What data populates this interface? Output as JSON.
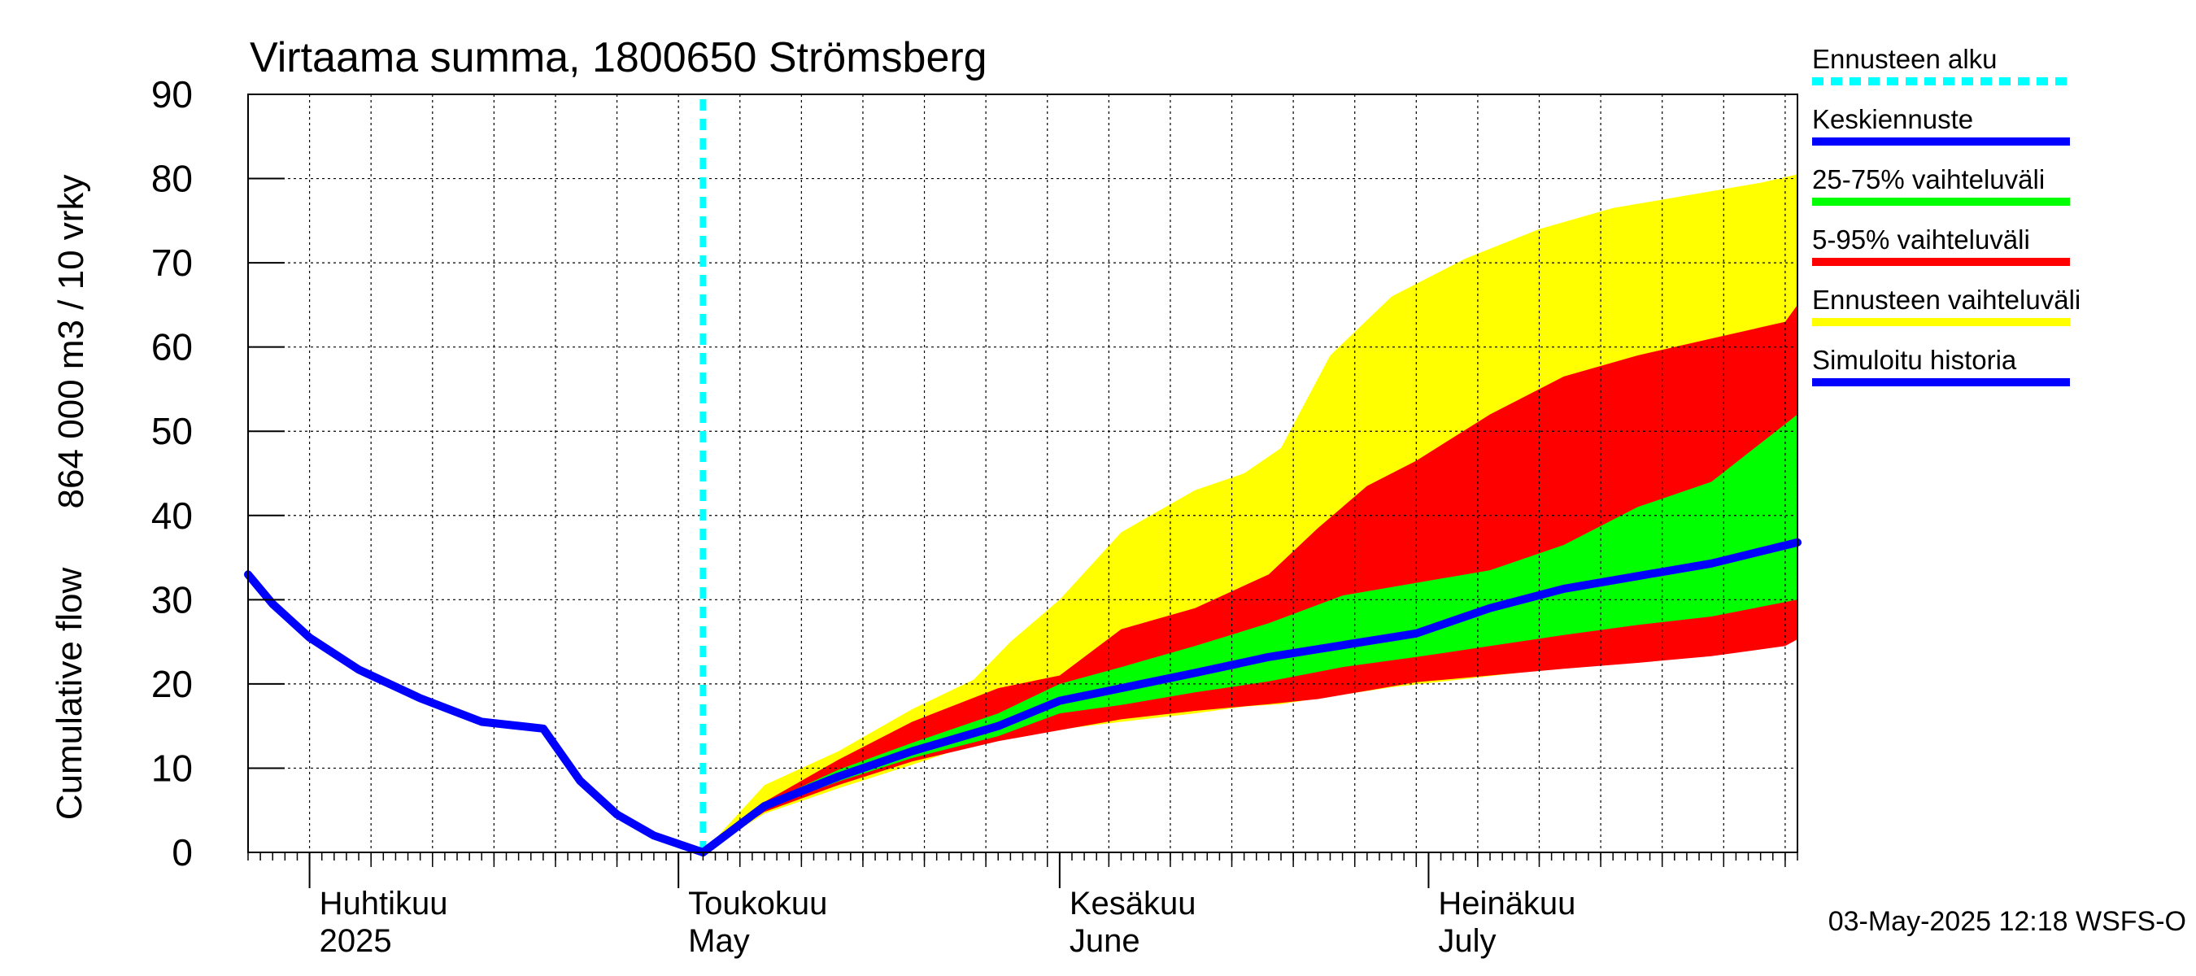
{
  "chart_data": {
    "type": "area",
    "title": "Virtaama summa, 1800650 Strömsberg",
    "ylabel_line1": "864 000 m3 / 10 vrky",
    "ylabel_line2": "Cumulative flow",
    "ylim": [
      0,
      90
    ],
    "yticks": [
      0,
      10,
      20,
      30,
      40,
      50,
      60,
      70,
      80,
      90
    ],
    "x_start": "2025-03-27",
    "x_end": "2025-07-31",
    "forecast_start": "2025-05-03",
    "grid": true,
    "month_labels": [
      {
        "date": "2025-04-01",
        "fi": "Huhtikuu",
        "en": "2025"
      },
      {
        "date": "2025-05-01",
        "fi": "Toukokuu",
        "en": "May"
      },
      {
        "date": "2025-06-01",
        "fi": "Kesäkuu",
        "en": "June"
      },
      {
        "date": "2025-07-01",
        "fi": "Heinäkuu",
        "en": "July"
      }
    ],
    "colors": {
      "forecast_start": "#00ffff",
      "median": "#0000ff",
      "band_25_75": "#00ff00",
      "band_5_95": "#ff0000",
      "band_full": "#ffff00",
      "history": "#0000ff"
    },
    "legend": [
      {
        "label": "Ennusteen alku",
        "color": "#00ffff",
        "style": "dashed"
      },
      {
        "label": "Keskiennuste",
        "color": "#0000ff",
        "style": "solid"
      },
      {
        "label": "25-75% vaihteluväli",
        "color": "#00ff00",
        "style": "solid"
      },
      {
        "label": "5-95% vaihteluväli",
        "color": "#ff0000",
        "style": "solid"
      },
      {
        "label": "Ennusteen vaihteluväli",
        "color": "#ffff00",
        "style": "solid"
      },
      {
        "label": "Simuloitu historia",
        "color": "#0000ff",
        "style": "solid"
      }
    ],
    "legend_position": "right",
    "history": {
      "x": [
        "2025-03-27",
        "2025-03-29",
        "2025-04-01",
        "2025-04-05",
        "2025-04-10",
        "2025-04-15",
        "2025-04-20",
        "2025-04-23",
        "2025-04-26",
        "2025-04-29",
        "2025-05-03"
      ],
      "y": [
        33,
        29.5,
        25.5,
        21.7,
        18.3,
        15.5,
        14.7,
        8.5,
        4.5,
        2.0,
        0
      ]
    },
    "median": {
      "x": [
        "2025-05-03",
        "2025-05-08",
        "2025-05-14",
        "2025-05-20",
        "2025-05-27",
        "2025-06-01",
        "2025-06-06",
        "2025-06-12",
        "2025-06-18",
        "2025-06-24",
        "2025-06-30",
        "2025-07-06",
        "2025-07-12",
        "2025-07-18",
        "2025-07-24",
        "2025-07-31"
      ],
      "y": [
        0,
        5.5,
        9.0,
        12.0,
        15.0,
        18.0,
        19.5,
        21.3,
        23.2,
        24.6,
        26.0,
        29.0,
        31.3,
        32.8,
        34.3,
        36.8
      ]
    },
    "band_25_75": {
      "x": [
        "2025-05-03",
        "2025-05-08",
        "2025-05-14",
        "2025-05-20",
        "2025-05-27",
        "2025-06-01",
        "2025-06-06",
        "2025-06-12",
        "2025-06-18",
        "2025-06-24",
        "2025-06-30",
        "2025-07-06",
        "2025-07-12",
        "2025-07-18",
        "2025-07-24",
        "2025-07-31"
      ],
      "upper": [
        0,
        5.8,
        9.8,
        13.0,
        16.5,
        20.0,
        22.0,
        24.5,
        27.2,
        30.5,
        32.0,
        33.5,
        36.5,
        41.0,
        44.0,
        52.0
      ],
      "lower": [
        0,
        5.2,
        8.4,
        11.2,
        13.8,
        16.5,
        17.5,
        19.0,
        20.3,
        22.0,
        23.2,
        24.5,
        25.8,
        27.0,
        28.0,
        30.0
      ]
    },
    "band_5_95": {
      "x": [
        "2025-05-03",
        "2025-05-08",
        "2025-05-14",
        "2025-05-20",
        "2025-05-27",
        "2025-06-01",
        "2025-06-06",
        "2025-06-12",
        "2025-06-18",
        "2025-06-22",
        "2025-06-26",
        "2025-06-30",
        "2025-07-06",
        "2025-07-12",
        "2025-07-18",
        "2025-07-24",
        "2025-07-30",
        "2025-07-31"
      ],
      "upper": [
        0,
        6.0,
        11.0,
        15.5,
        19.5,
        21.0,
        26.5,
        29.0,
        33.0,
        38.5,
        43.5,
        46.5,
        52.0,
        56.5,
        59.0,
        61.0,
        63.0,
        65.0
      ],
      "lower": [
        0,
        4.8,
        8.0,
        10.8,
        13.2,
        14.5,
        15.8,
        16.8,
        17.6,
        18.2,
        19.2,
        20.2,
        21.0,
        21.8,
        22.5,
        23.3,
        24.5,
        25.3
      ]
    },
    "band_full": {
      "x": [
        "2025-05-03",
        "2025-05-08",
        "2025-05-14",
        "2025-05-20",
        "2025-05-25",
        "2025-05-28",
        "2025-06-01",
        "2025-06-06",
        "2025-06-12",
        "2025-06-16",
        "2025-06-19",
        "2025-06-23",
        "2025-06-28",
        "2025-07-04",
        "2025-07-10",
        "2025-07-16",
        "2025-07-22",
        "2025-07-28",
        "2025-07-31"
      ],
      "upper": [
        0,
        8.0,
        12.0,
        17.0,
        20.5,
        25.0,
        30.0,
        38.0,
        43.0,
        45.0,
        48.0,
        59.0,
        66.0,
        70.5,
        74.0,
        76.5,
        78.0,
        79.5,
        80.5
      ],
      "lower": [
        0,
        4.6,
        7.6,
        10.4,
        12.8,
        13.8,
        14.6,
        15.5,
        16.5,
        17.3,
        17.6,
        18.5,
        19.6,
        20.6,
        21.6,
        22.5,
        23.4,
        24.5,
        25.2
      ]
    },
    "timestamp": "03-May-2025 12:18 WSFS-O"
  }
}
